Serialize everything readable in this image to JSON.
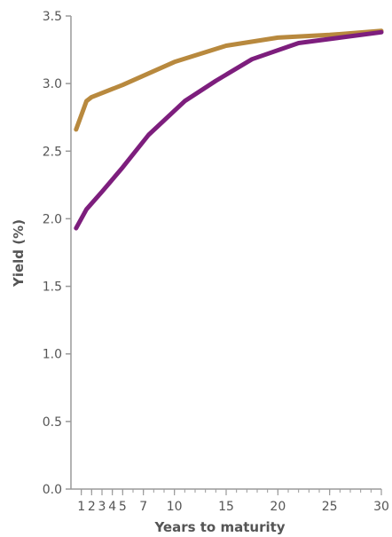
{
  "chart_data": {
    "type": "line",
    "title": "",
    "xlabel": "Years to maturity",
    "ylabel": "Yield (%)",
    "xlim": [
      0,
      30
    ],
    "ylim": [
      0,
      3.5
    ],
    "x_ticks": [
      {
        "value": 1,
        "label": "1"
      },
      {
        "value": 2,
        "label": "2"
      },
      {
        "value": 3,
        "label": "3"
      },
      {
        "value": 4,
        "label": "4"
      },
      {
        "value": 5,
        "label": "5"
      },
      {
        "value": 7,
        "label": "7"
      },
      {
        "value": 10,
        "label": "10"
      },
      {
        "value": 15,
        "label": "15"
      },
      {
        "value": 20,
        "label": "20"
      },
      {
        "value": 25,
        "label": "25"
      },
      {
        "value": 30,
        "label": "30"
      }
    ],
    "y_ticks": [
      {
        "value": 0,
        "label": "0.0"
      },
      {
        "value": 0.5,
        "label": "0.5"
      },
      {
        "value": 1.0,
        "label": "1.0"
      },
      {
        "value": 1.5,
        "label": "1.5"
      },
      {
        "value": 2.0,
        "label": "2.0"
      },
      {
        "value": 2.5,
        "label": "2.5"
      },
      {
        "value": 3.0,
        "label": "3.0"
      },
      {
        "value": 3.5,
        "label": "3.5"
      }
    ],
    "grid": false,
    "legend": "none",
    "series": [
      {
        "color": "#b8893e",
        "points": [
          [
            0.5,
            2.66
          ],
          [
            1.5,
            2.87
          ],
          [
            2,
            2.9
          ],
          [
            5,
            2.99
          ],
          [
            10,
            3.16
          ],
          [
            15,
            3.28
          ],
          [
            20,
            3.34
          ],
          [
            25,
            3.36
          ],
          [
            30,
            3.39
          ]
        ]
      },
      {
        "color": "#7d1e7d",
        "points": [
          [
            0.5,
            1.93
          ],
          [
            1.5,
            2.07
          ],
          [
            3,
            2.2
          ],
          [
            5,
            2.38
          ],
          [
            7.5,
            2.62
          ],
          [
            11,
            2.87
          ],
          [
            14,
            3.02
          ],
          [
            17.5,
            3.18
          ],
          [
            22,
            3.3
          ],
          [
            26,
            3.34
          ],
          [
            30,
            3.38
          ]
        ]
      }
    ]
  }
}
